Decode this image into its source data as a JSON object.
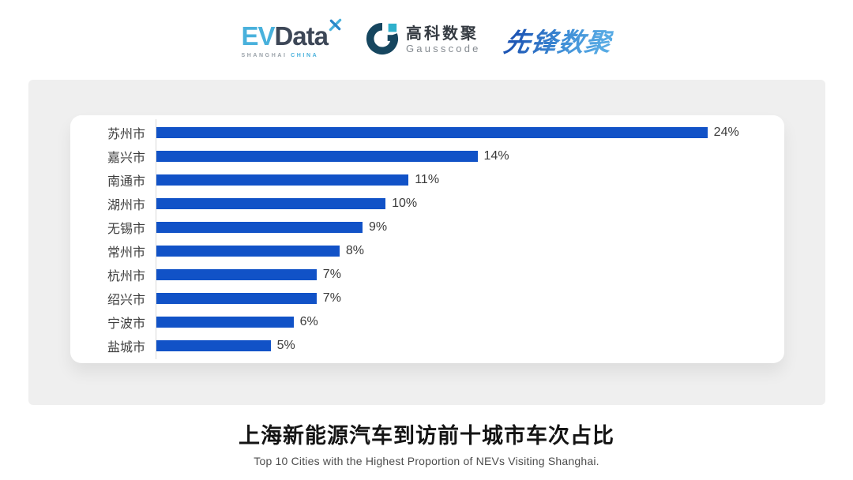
{
  "header": {
    "evdata_logo": {
      "ev": "EV",
      "data": "Data",
      "tagline_left": "SHANGHAI",
      "tagline_right": "CHINA"
    },
    "gausscode_logo": {
      "cn": "高科数聚",
      "en": "Gausscode"
    },
    "pioneer_logo": {
      "text": "先锋数聚"
    }
  },
  "chart_data": {
    "type": "bar",
    "orientation": "horizontal",
    "categories": [
      "苏州市",
      "嘉兴市",
      "南通市",
      "湖州市",
      "无锡市",
      "常州市",
      "杭州市",
      "绍兴市",
      "宁波市",
      "盐城市"
    ],
    "values": [
      24,
      14,
      11,
      10,
      9,
      8,
      7,
      7,
      6,
      5
    ],
    "value_suffix": "%",
    "title": "上海新能源汽车到访前十城市车次占比",
    "subtitle": "Top 10 Cities with the Highest Proportion of  NEVs Visiting Shanghai.",
    "xlabel": "",
    "ylabel": "",
    "xlim": [
      0,
      27
    ],
    "grid": false,
    "legend": false,
    "bar_color": "#1152c7",
    "axis_color": "#d9d9d9",
    "label_color": "#3f3f3f",
    "value_color": "#3a3a3a"
  },
  "colors": {
    "panel_background": "#efefef",
    "card_background": "#ffffff",
    "evdata_blue": "#49b1dc",
    "evdata_dark": "#3d4757",
    "gauss_dark": "#16465f",
    "gauss_cyan": "#2fb0cc",
    "pioneer_blue": "#2e6fc4"
  }
}
